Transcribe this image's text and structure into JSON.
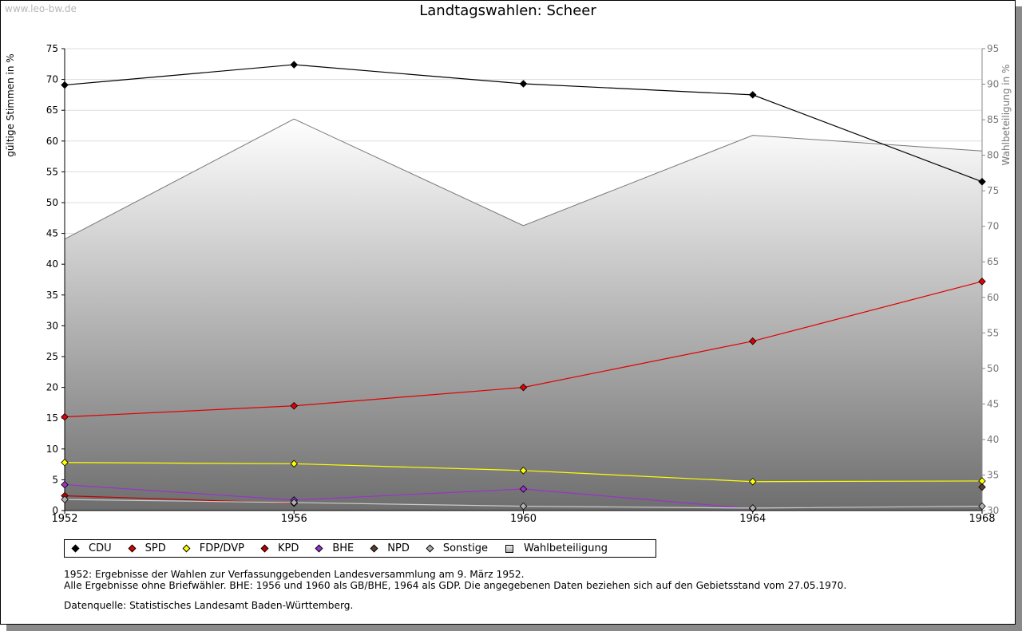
{
  "watermark": "www.leo-bw.de",
  "colors": {
    "CDU": "#000000",
    "SPD": "#e00000",
    "FDP/DVP": "#ffff00",
    "KPD": "#c00000",
    "BHE": "#9933cc",
    "NPD": "#5a4030",
    "Sonstige": "#b0b0b0",
    "Wahlbeteiligung": "#888888"
  },
  "chart_data": {
    "type": "line",
    "title": "Landtagswahlen: Scheer",
    "ylabel": "gültige Stimmen in %",
    "y2label": "Wahlbeteiligung in %",
    "ylim": [
      0,
      75
    ],
    "y2lim": [
      30,
      95
    ],
    "yticks": [
      "0",
      "5",
      "10",
      "15",
      "20",
      "25",
      "30",
      "35",
      "40",
      "45",
      "50",
      "55",
      "60",
      "65",
      "70",
      "75"
    ],
    "y2ticks": [
      "30",
      "35",
      "40",
      "45",
      "50",
      "55",
      "60",
      "65",
      "70",
      "75",
      "80",
      "85",
      "90",
      "95"
    ],
    "categories": [
      "1952",
      "1956",
      "1960",
      "1964",
      "1968"
    ],
    "series": [
      {
        "name": "CDU",
        "values": [
          69.1,
          72.4,
          69.3,
          67.5,
          53.4
        ]
      },
      {
        "name": "SPD",
        "values": [
          15.2,
          17.0,
          20.0,
          27.5,
          37.2
        ]
      },
      {
        "name": "FDP/DVP",
        "values": [
          7.8,
          7.6,
          6.5,
          4.7,
          4.8
        ]
      },
      {
        "name": "KPD",
        "values": [
          2.4,
          1.2,
          null,
          null,
          null
        ]
      },
      {
        "name": "BHE",
        "values": [
          4.2,
          1.7,
          3.5,
          0.3,
          null
        ]
      },
      {
        "name": "NPD",
        "values": [
          null,
          null,
          null,
          null,
          3.8
        ]
      },
      {
        "name": "Sonstige",
        "values": [
          1.8,
          1.3,
          0.7,
          0.4,
          0.7
        ]
      }
    ],
    "turnout": {
      "name": "Wahlbeteiligung",
      "values": [
        68.2,
        85.1,
        70.1,
        82.8,
        80.6
      ]
    },
    "legend": [
      "CDU",
      "SPD",
      "FDP/DVP",
      "KPD",
      "BHE",
      "NPD",
      "Sonstige",
      "Wahlbeteiligung"
    ]
  },
  "notes": {
    "line1": "1952: Ergebnisse der Wahlen zur Verfassunggebenden Landesversammlung am 9. März 1952.",
    "line2": "Alle Ergebnisse ohne Briefwähler. BHE: 1956 und 1960 als GB/BHE, 1964 als GDP. Die angegebenen Daten beziehen sich auf den Gebietsstand vom 27.05.1970.",
    "source": "Datenquelle: Statistisches Landesamt Baden-Württemberg."
  }
}
